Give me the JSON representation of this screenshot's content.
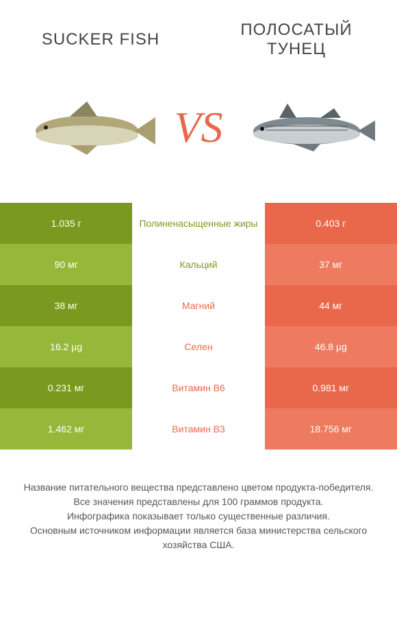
{
  "colors": {
    "green_dark": "#7a9a1f",
    "green_light": "#96b83a",
    "orange_dark": "#e9684b",
    "orange_light": "#ee7b5f",
    "green_text": "#7a9a1f",
    "orange_text": "#e9684b",
    "white": "#ffffff"
  },
  "header": {
    "left_title": "SUCKER FISH",
    "right_title": "ПОЛОСАТЫЙ ТУНЕЦ",
    "vs": "VS"
  },
  "rows": [
    {
      "left": "1.035 г",
      "mid": "Полиненасыщенные жиры",
      "right": "0.403 г",
      "winner": "left"
    },
    {
      "left": "90 мг",
      "mid": "Кальций",
      "right": "37 мг",
      "winner": "left"
    },
    {
      "left": "38 мг",
      "mid": "Магний",
      "right": "44 мг",
      "winner": "right"
    },
    {
      "left": "16.2 µg",
      "mid": "Селен",
      "right": "46.8 µg",
      "winner": "right"
    },
    {
      "left": "0.231 мг",
      "mid": "Витамин B6",
      "right": "0.981 мг",
      "winner": "right"
    },
    {
      "left": "1.462 мг",
      "mid": "Витамин B3",
      "right": "18.756 мг",
      "winner": "right"
    }
  ],
  "footer": {
    "line1": "Название питательного вещества представлено цветом продукта-победителя.",
    "line2": "Все значения представлены для 100 граммов продукта.",
    "line3": "Инфографика показывает только существенные различия.",
    "line4": "Основным источником информации является база министерства сельского хозяйства США."
  }
}
